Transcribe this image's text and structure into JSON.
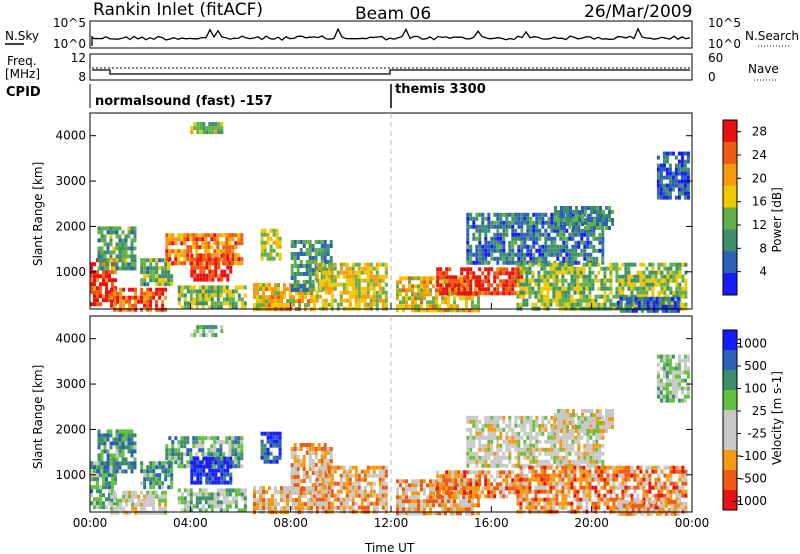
{
  "header": {
    "station": "Rankin Inlet (fitACF)",
    "beam": "Beam 06",
    "date": "26/Mar/2009"
  },
  "rows": {
    "nsky_label": "N.Sky",
    "nsky_ticks": [
      "10^5",
      "10^0"
    ],
    "nsearch_label": "N.Search",
    "freq_label": "Freq.",
    "freq_unit": "[MHz]",
    "freq_ticks": [
      "12",
      "8"
    ],
    "nave_label": "Nave",
    "nave_ticks": [
      "60",
      "0"
    ],
    "cpid_label": "CPID"
  },
  "modes": [
    {
      "label": "normalsound (fast) -157",
      "start_hour": 0,
      "end_hour": 12
    },
    {
      "label": "themis 3300",
      "start_hour": 12,
      "end_hour": 24
    }
  ],
  "colors": {
    "power_scale": [
      "#1a1aff",
      "#2c5fb8",
      "#3c8f6a",
      "#63b04a",
      "#f0c800",
      "#f59a10",
      "#f05a10",
      "#e81010"
    ],
    "velocity_scale": [
      "#e81010",
      "#f05a10",
      "#f59a10",
      "#c8c8c8",
      "#c8c8c8",
      "#63c040",
      "#3c8f6a",
      "#2c5fb8",
      "#1a1aff"
    ],
    "ground_scatter": "#b4b4b4"
  },
  "chart_data": [
    {
      "type": "heatmap",
      "title": "Power",
      "xlabel": "Time UT",
      "ylabel": "Slant Range [km]",
      "xlim": [
        0,
        24
      ],
      "x_ticks": [
        "00:00",
        "04:00",
        "08:00",
        "12:00",
        "16:00",
        "20:00",
        "00:00"
      ],
      "ylim": [
        180,
        4500
      ],
      "y_ticks": [
        1000,
        2000,
        3000,
        4000
      ],
      "colorbar_label": "Power [dB]",
      "colorbar_ticks": [
        "4",
        "8",
        "12",
        "16",
        "20",
        "24",
        "28"
      ],
      "colorbar_range": [
        0,
        30
      ],
      "regions": [
        {
          "t0": 0.0,
          "t1": 1.0,
          "r0": 300,
          "r1": 1300,
          "level": 0.9
        },
        {
          "t0": 0.3,
          "t1": 1.8,
          "r0": 1100,
          "r1": 2000,
          "level": 0.35
        },
        {
          "t0": 0.8,
          "t1": 3.0,
          "r0": 180,
          "r1": 650,
          "level": 0.85
        },
        {
          "t0": 2.0,
          "t1": 3.2,
          "r0": 700,
          "r1": 1300,
          "level": 0.4
        },
        {
          "t0": 3.0,
          "t1": 6.0,
          "r0": 1150,
          "r1": 1850,
          "level": 0.75
        },
        {
          "t0": 4.0,
          "t1": 5.6,
          "r0": 800,
          "r1": 1400,
          "level": 0.9
        },
        {
          "t0": 3.5,
          "t1": 6.2,
          "r0": 180,
          "r1": 700,
          "level": 0.45
        },
        {
          "t0": 6.8,
          "t1": 7.6,
          "r0": 1250,
          "r1": 1950,
          "level": 0.55
        },
        {
          "t0": 6.5,
          "t1": 9.0,
          "r0": 180,
          "r1": 750,
          "level": 0.6
        },
        {
          "t0": 8.0,
          "t1": 9.6,
          "r0": 600,
          "r1": 1700,
          "level": 0.3
        },
        {
          "t0": 9.0,
          "t1": 11.8,
          "r0": 180,
          "r1": 1200,
          "level": 0.55
        },
        {
          "t0": 12.2,
          "t1": 15.5,
          "r0": 180,
          "r1": 900,
          "level": 0.6
        },
        {
          "t0": 13.8,
          "t1": 17.2,
          "r0": 500,
          "r1": 1100,
          "level": 0.9
        },
        {
          "t0": 15.0,
          "t1": 20.5,
          "r0": 1200,
          "r1": 2300,
          "level": 0.25
        },
        {
          "t0": 18.5,
          "t1": 20.8,
          "r0": 2000,
          "r1": 2450,
          "level": 0.3
        },
        {
          "t0": 17.0,
          "t1": 23.8,
          "r0": 180,
          "r1": 1200,
          "level": 0.45
        },
        {
          "t0": 21.0,
          "t1": 23.5,
          "r0": 180,
          "r1": 450,
          "level": 0.2
        },
        {
          "t0": 4.0,
          "t1": 5.2,
          "r0": 4100,
          "r1": 4300,
          "level": 0.5
        },
        {
          "t0": 22.6,
          "t1": 23.8,
          "r0": 2650,
          "r1": 3650,
          "level": 0.2
        }
      ]
    },
    {
      "type": "heatmap",
      "title": "Velocity",
      "xlabel": "Time UT",
      "ylabel": "Slant Range [km]",
      "xlim": [
        0,
        24
      ],
      "x_ticks": [
        "00:00",
        "04:00",
        "08:00",
        "12:00",
        "16:00",
        "20:00",
        "00:00"
      ],
      "ylim": [
        180,
        4500
      ],
      "y_ticks": [
        1000,
        2000,
        3000,
        4000
      ],
      "colorbar_label": "Velocity [m s-1]",
      "colorbar_ticks": [
        "1000",
        "500",
        "100",
        "25",
        "-25",
        "-100",
        "-500",
        "-1000"
      ],
      "colorbar_range": [
        -1000,
        1000
      ],
      "regions": [
        {
          "t0": 0.0,
          "t1": 1.0,
          "r0": 300,
          "r1": 1300,
          "level": 0.65
        },
        {
          "t0": 0.3,
          "t1": 1.8,
          "r0": 1100,
          "r1": 2000,
          "level": 0.7
        },
        {
          "t0": 0.8,
          "t1": 3.0,
          "r0": 180,
          "r1": 650,
          "level": 0.45
        },
        {
          "t0": 2.0,
          "t1": 3.2,
          "r0": 700,
          "r1": 1300,
          "level": 0.7
        },
        {
          "t0": 3.0,
          "t1": 6.0,
          "r0": 1150,
          "r1": 1850,
          "level": 0.65
        },
        {
          "t0": 4.0,
          "t1": 5.6,
          "r0": 800,
          "r1": 1400,
          "level": 0.92
        },
        {
          "t0": 3.5,
          "t1": 6.2,
          "r0": 180,
          "r1": 700,
          "level": 0.6
        },
        {
          "t0": 6.8,
          "t1": 7.6,
          "r0": 1250,
          "r1": 1950,
          "level": 0.88
        },
        {
          "t0": 6.5,
          "t1": 9.0,
          "r0": 180,
          "r1": 750,
          "level": 0.35
        },
        {
          "t0": 8.0,
          "t1": 9.6,
          "r0": 600,
          "r1": 1700,
          "level": 0.3
        },
        {
          "t0": 9.0,
          "t1": 11.8,
          "r0": 180,
          "r1": 1200,
          "level": 0.3
        },
        {
          "t0": 12.2,
          "t1": 15.5,
          "r0": 180,
          "r1": 900,
          "level": 0.3
        },
        {
          "t0": 13.8,
          "t1": 17.2,
          "r0": 500,
          "r1": 1100,
          "level": 0.25
        },
        {
          "t0": 15.0,
          "t1": 20.5,
          "r0": 1200,
          "r1": 2300,
          "level": 0.45
        },
        {
          "t0": 18.5,
          "t1": 20.8,
          "r0": 2000,
          "r1": 2450,
          "level": 0.45
        },
        {
          "t0": 17.0,
          "t1": 23.8,
          "r0": 180,
          "r1": 1200,
          "level": 0.25
        },
        {
          "t0": 21.0,
          "t1": 23.5,
          "r0": 180,
          "r1": 450,
          "level": 0.3
        },
        {
          "t0": 4.0,
          "t1": 5.2,
          "r0": 4100,
          "r1": 4300,
          "level": 0.6
        },
        {
          "t0": 22.6,
          "t1": 23.8,
          "r0": 2650,
          "r1": 3650,
          "level": 0.55
        }
      ]
    }
  ]
}
